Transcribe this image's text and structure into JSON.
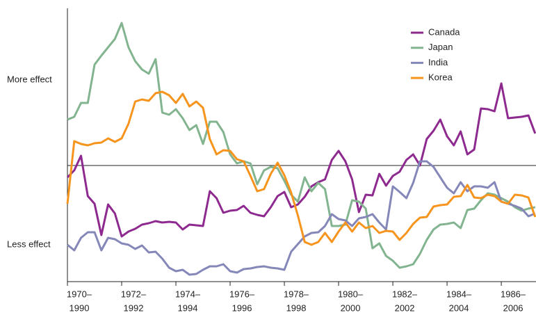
{
  "chart_data": {
    "type": "line",
    "x": [
      1970,
      1970.25,
      1970.5,
      1970.75,
      1971,
      1971.25,
      1971.5,
      1971.75,
      1972,
      1972.25,
      1972.5,
      1972.75,
      1973,
      1973.25,
      1973.5,
      1973.75,
      1974,
      1974.25,
      1974.5,
      1974.75,
      1975,
      1975.25,
      1975.5,
      1975.75,
      1976,
      1976.25,
      1976.5,
      1976.75,
      1977,
      1977.25,
      1977.5,
      1977.75,
      1978,
      1978.25,
      1978.5,
      1978.75,
      1979,
      1979.25,
      1979.5,
      1979.75,
      1980,
      1980.25,
      1980.5,
      1980.75,
      1981,
      1981.25,
      1981.5,
      1981.75,
      1982,
      1982.25,
      1982.5,
      1982.75,
      1983,
      1983.25,
      1983.5,
      1983.75,
      1984,
      1984.25,
      1984.5,
      1984.75,
      1985,
      1985.25,
      1985.5,
      1985.75,
      1986,
      1986.25,
      1986.5,
      1986.75,
      1987,
      1987.25
    ],
    "series": [
      {
        "name": "Canada",
        "color": "#8e2a8f",
        "values": [
          -17,
          -7,
          14,
          -44,
          -55,
          -100,
          -56,
          -69,
          -102,
          -95,
          -91,
          -85,
          -83,
          -80,
          -82,
          -81,
          -82,
          -92,
          -85,
          -86,
          -87,
          -37,
          -47,
          -68,
          -65,
          -64,
          -58,
          -68,
          -71,
          -73,
          -60,
          -44,
          -38,
          -60,
          -56,
          -45,
          -30,
          -24,
          -20,
          8,
          21,
          6,
          -20,
          -67,
          -42,
          -43,
          -12,
          -29,
          -15,
          -9,
          8,
          16,
          0,
          38,
          50,
          66,
          42,
          29,
          49,
          16,
          23,
          82,
          81,
          78,
          118,
          68,
          69,
          70,
          72,
          46
        ]
      },
      {
        "name": "Japan",
        "color": "#82b48f",
        "values": [
          66,
          70,
          90,
          90,
          145,
          158,
          170,
          182,
          205,
          170,
          150,
          138,
          132,
          153,
          76,
          73,
          81,
          68,
          51,
          58,
          31,
          63,
          63,
          48,
          16,
          3,
          6,
          3,
          -27,
          -7,
          -2,
          -4,
          -22,
          -42,
          -52,
          -17,
          -37,
          -25,
          -34,
          -87,
          -87,
          -85,
          -50,
          -52,
          -62,
          -119,
          -112,
          -130,
          -137,
          -147,
          -145,
          -142,
          -127,
          -107,
          -92,
          -85,
          -84,
          -82,
          -90,
          -64,
          -62,
          -50,
          -40,
          -42,
          -47,
          -52,
          -60,
          -65,
          -62,
          -60
        ]
      },
      {
        "name": "India",
        "color": "#8587b9",
        "values": [
          -114,
          -122,
          -104,
          -96,
          -96,
          -122,
          -104,
          -106,
          -112,
          -114,
          -120,
          -115,
          -125,
          -124,
          -134,
          -147,
          -152,
          -150,
          -157,
          -156,
          -150,
          -145,
          -145,
          -142,
          -152,
          -154,
          -149,
          -148,
          -146,
          -145,
          -147,
          -148,
          -150,
          -124,
          -113,
          -102,
          -97,
          -96,
          -87,
          -70,
          -77,
          -79,
          -87,
          -76,
          -74,
          -70,
          -82,
          -92,
          -30,
          -38,
          -47,
          -25,
          6,
          6,
          -2,
          -17,
          -32,
          -40,
          -24,
          -37,
          -30,
          -30,
          -32,
          -24,
          -52,
          -55,
          -58,
          -62,
          -73,
          -69
        ]
      },
      {
        "name": "Korea",
        "color": "#f7941d",
        "values": [
          -55,
          35,
          31,
          29,
          32,
          33,
          39,
          34,
          39,
          60,
          92,
          95,
          93,
          104,
          106,
          101,
          90,
          103,
          85,
          92,
          83,
          38,
          16,
          22,
          21,
          9,
          6,
          -15,
          -37,
          -34,
          -12,
          4,
          -14,
          -39,
          -72,
          -110,
          -114,
          -110,
          -97,
          -110,
          -95,
          -82,
          -95,
          -82,
          -90,
          -87,
          -97,
          -94,
          -95,
          -107,
          -97,
          -84,
          -75,
          -74,
          -59,
          -57,
          -56,
          -45,
          -44,
          -28,
          -46,
          -47,
          -42,
          -44,
          -52,
          -55,
          -42,
          -43,
          -46,
          -74
        ]
      }
    ],
    "xlim": [
      1970,
      1987.28
    ],
    "ylim": [
      -167,
      226
    ],
    "xticks": [
      {
        "value": 1970,
        "label": [
          "1970–",
          "1990"
        ]
      },
      {
        "value": 1972,
        "label": [
          "1972–",
          "1992"
        ]
      },
      {
        "value": 1974,
        "label": [
          "1974–",
          "1994"
        ]
      },
      {
        "value": 1976,
        "label": [
          "1976–",
          "1996"
        ]
      },
      {
        "value": 1978,
        "label": [
          "1978–",
          "1998"
        ]
      },
      {
        "value": 1980,
        "label": [
          "1980–",
          "2000"
        ]
      },
      {
        "value": 1982,
        "label": [
          "1982–",
          "2002"
        ]
      },
      {
        "value": 1984,
        "label": [
          "1984–",
          "2004"
        ]
      },
      {
        "value": 1986,
        "label": [
          "1986–",
          "2006"
        ]
      }
    ],
    "yticks": [
      {
        "value": 123,
        "label": "More effect"
      },
      {
        "value": -114,
        "label": "Less effect"
      }
    ],
    "hline": 0,
    "legend": "top-right"
  }
}
